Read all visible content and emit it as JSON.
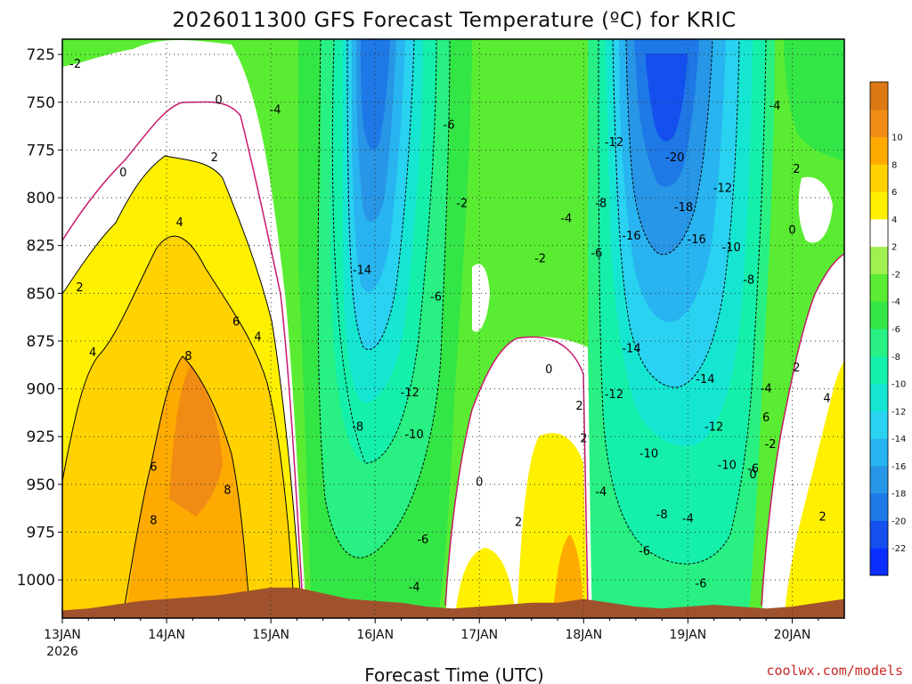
{
  "chart_data": {
    "type": "heatmap",
    "title": "2026011300 GFS Forecast Temperature (ºC) for KRIC",
    "xlabel": "Forecast Time (UTC)",
    "ylabel": "",
    "credit": "coolwx.com/models",
    "y_unit": "hPa",
    "y_ticks": [
      725,
      750,
      775,
      800,
      825,
      850,
      875,
      900,
      925,
      950,
      975,
      1000
    ],
    "ylim": [
      1020,
      717
    ],
    "x_ticks": [
      {
        "label": "13JAN",
        "sub": "2026",
        "hour": 0
      },
      {
        "label": "14JAN",
        "sub": "",
        "hour": 24
      },
      {
        "label": "15JAN",
        "sub": "",
        "hour": 48
      },
      {
        "label": "16JAN",
        "sub": "",
        "hour": 72
      },
      {
        "label": "17JAN",
        "sub": "",
        "hour": 96
      },
      {
        "label": "18JAN",
        "sub": "",
        "hour": 120
      },
      {
        "label": "19JAN",
        "sub": "",
        "hour": 144
      },
      {
        "label": "20JAN",
        "sub": "",
        "hour": 168
      }
    ],
    "xlim": [
      0,
      180
    ],
    "colorbar": {
      "bins": [
        -24,
        -22,
        -20,
        -18,
        -16,
        -14,
        -12,
        -10,
        -8,
        -6,
        -4,
        -2,
        2,
        4,
        6,
        8,
        10,
        12
      ],
      "colors": [
        "#0a2eff",
        "#1450ee",
        "#1e78e6",
        "#2896e6",
        "#28b4f0",
        "#28d2f0",
        "#14e6d2",
        "#14f0aa",
        "#28f082",
        "#32e646",
        "#5aec32",
        "#a0f050",
        "#ffffff",
        "#fff000",
        "#ffd200",
        "#ffaa00",
        "#f08c14",
        "#dc7814"
      ],
      "labels": [
        "-22",
        "-20",
        "-18",
        "-16",
        "-14",
        "-12",
        "-10",
        "-8",
        "-6",
        "-4",
        "-2",
        "2",
        "4",
        "6",
        "8",
        "10"
      ]
    },
    "grid": true,
    "series": [
      {
        "name": "",
        "x": [
          0,
          6,
          12,
          18,
          24,
          30,
          36,
          42,
          48,
          54,
          60,
          66,
          72,
          78,
          84,
          90,
          96,
          102,
          108,
          114,
          120,
          126,
          132,
          138,
          144,
          150,
          156,
          162,
          168,
          174,
          180
        ],
        "surface_pressure": [
          1016,
          1015,
          1013,
          1011,
          1010,
          1009,
          1008,
          1006,
          1004,
          1004,
          1007,
          1010,
          1011,
          1012,
          1014,
          1015,
          1014,
          1013,
          1012,
          1012,
          1010,
          1012,
          1014,
          1015,
          1014,
          1013,
          1014,
          1015,
          1014,
          1012,
          1010
        ]
      }
    ],
    "contour_labels": [
      {
        "text": "-2",
        "hour": 3,
        "p": 730
      },
      {
        "text": "0",
        "hour": 14,
        "p": 787
      },
      {
        "text": "0",
        "hour": 36,
        "p": 749
      },
      {
        "text": "2",
        "hour": 4,
        "p": 847
      },
      {
        "text": "2",
        "hour": 35,
        "p": 779
      },
      {
        "text": "4",
        "hour": 7,
        "p": 881
      },
      {
        "text": "4",
        "hour": 27,
        "p": 813
      },
      {
        "text": "4",
        "hour": 45,
        "p": 873
      },
      {
        "text": "6",
        "hour": 21,
        "p": 941
      },
      {
        "text": "6",
        "hour": 40,
        "p": 865
      },
      {
        "text": "8",
        "hour": 29,
        "p": 883
      },
      {
        "text": "8",
        "hour": 38,
        "p": 953
      },
      {
        "text": "8",
        "hour": 21,
        "p": 969
      },
      {
        "text": "-4",
        "hour": 49,
        "p": 754
      },
      {
        "text": "-6",
        "hour": 89,
        "p": 762
      },
      {
        "text": "-2",
        "hour": 92,
        "p": 803
      },
      {
        "text": "-14",
        "hour": 69,
        "p": 838
      },
      {
        "text": "-6",
        "hour": 86,
        "p": 852
      },
      {
        "text": "-8",
        "hour": 68,
        "p": 920
      },
      {
        "text": "-12",
        "hour": 80,
        "p": 902
      },
      {
        "text": "-10",
        "hour": 81,
        "p": 924
      },
      {
        "text": "-6",
        "hour": 83,
        "p": 979
      },
      {
        "text": "-4",
        "hour": 81,
        "p": 1004
      },
      {
        "text": "0",
        "hour": 96,
        "p": 949
      },
      {
        "text": "2",
        "hour": 105,
        "p": 970
      },
      {
        "text": "0",
        "hour": 112,
        "p": 890
      },
      {
        "text": "-2",
        "hour": 110,
        "p": 832
      },
      {
        "text": "-4",
        "hour": 116,
        "p": 811
      },
      {
        "text": "-6",
        "hour": 123,
        "p": 829
      },
      {
        "text": "-8",
        "hour": 124,
        "p": 803
      },
      {
        "text": "-12",
        "hour": 127,
        "p": 771
      },
      {
        "text": "-20",
        "hour": 141,
        "p": 779
      },
      {
        "text": "-18",
        "hour": 143,
        "p": 805
      },
      {
        "text": "-16",
        "hour": 131,
        "p": 820
      },
      {
        "text": "-16",
        "hour": 146,
        "p": 822
      },
      {
        "text": "-12",
        "hour": 152,
        "p": 795
      },
      {
        "text": "-10",
        "hour": 154,
        "p": 826
      },
      {
        "text": "-8",
        "hour": 158,
        "p": 843
      },
      {
        "text": "-14",
        "hour": 131,
        "p": 879
      },
      {
        "text": "-14",
        "hour": 148,
        "p": 895
      },
      {
        "text": "-12",
        "hour": 127,
        "p": 903
      },
      {
        "text": "-12",
        "hour": 150,
        "p": 920
      },
      {
        "text": "-10",
        "hour": 135,
        "p": 934
      },
      {
        "text": "-10",
        "hour": 153,
        "p": 940
      },
      {
        "text": "-8",
        "hour": 138,
        "p": 966
      },
      {
        "text": "-4",
        "hour": 144,
        "p": 968
      },
      {
        "text": "-6",
        "hour": 134,
        "p": 985
      },
      {
        "text": "-6",
        "hour": 147,
        "p": 1002
      },
      {
        "text": "-4",
        "hour": 124,
        "p": 954
      },
      {
        "text": "2",
        "hour": 119,
        "p": 909
      },
      {
        "text": "2",
        "hour": 120,
        "p": 926
      },
      {
        "text": "-4",
        "hour": 162,
        "p": 900
      },
      {
        "text": "6",
        "hour": 162,
        "p": 915
      },
      {
        "text": "-2",
        "hour": 163,
        "p": 929
      },
      {
        "text": "0",
        "hour": 159,
        "p": 945
      },
      {
        "text": "-6",
        "hour": 159,
        "p": 942
      },
      {
        "text": "-4",
        "hour": 164,
        "p": 752
      },
      {
        "text": "2",
        "hour": 169,
        "p": 785
      },
      {
        "text": "0",
        "hour": 168,
        "p": 817
      },
      {
        "text": "2",
        "hour": 169,
        "p": 889
      },
      {
        "text": "4",
        "hour": 176,
        "p": 905
      },
      {
        "text": "2",
        "hour": 175,
        "p": 967
      }
    ]
  }
}
